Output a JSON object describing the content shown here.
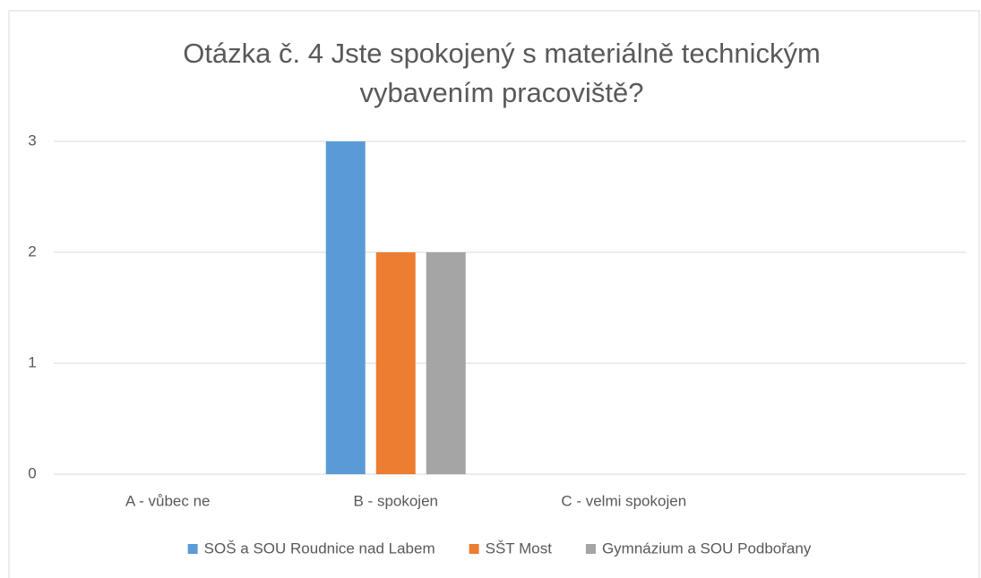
{
  "chart_data": {
    "type": "bar",
    "title": [
      "Otázka č. 4 Jste spokojený s materiálně technickým",
      "vybavením pracoviště?"
    ],
    "categories": [
      "A - vůbec ne",
      "B - spokojen",
      "C - velmi spokojen",
      null
    ],
    "series": [
      {
        "name": "SOŠ a SOU Roudnice nad Labem",
        "color": "#5b9bd5",
        "values": [
          0,
          3,
          0,
          null
        ]
      },
      {
        "name": "SŠT Most",
        "color": "#ed7d31",
        "values": [
          0,
          2,
          0,
          null
        ]
      },
      {
        "name": "Gymnázium a SOU Podbořany",
        "color": "#a5a5a5",
        "values": [
          0,
          2,
          0,
          null
        ]
      }
    ],
    "ylim": [
      0,
      3
    ],
    "yticks": [
      0,
      1,
      2,
      3
    ],
    "grid": true,
    "legend": "bottom"
  }
}
